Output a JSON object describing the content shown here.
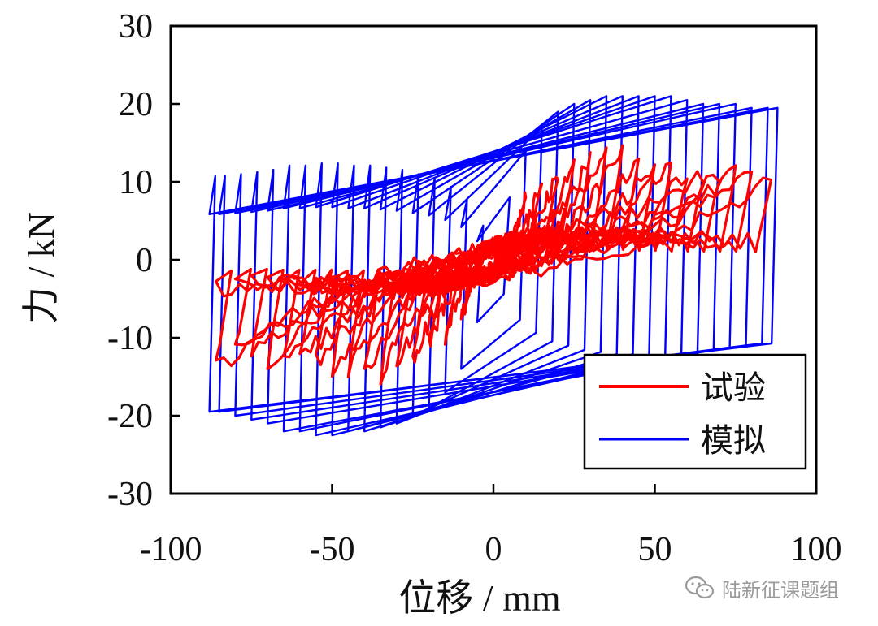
{
  "chart_data": {
    "type": "line",
    "title": "",
    "xlabel": "位移 / mm",
    "ylabel": "力 / kN",
    "xlim": [
      -100,
      100
    ],
    "ylim": [
      -30,
      30
    ],
    "x_ticks": [
      "-100",
      "-50",
      "0",
      "50",
      "100"
    ],
    "y_ticks": [
      "30",
      "20",
      "10",
      "0",
      "-10",
      "-20",
      "-30"
    ],
    "grid": false,
    "legend": {
      "placement": "bottom-right",
      "entries": [
        "试验",
        "模拟"
      ]
    },
    "series": [
      {
        "name": "试验",
        "color": "#ff0000",
        "loops": [
          {
            "amplitude": 10,
            "peak_pos": 8,
            "peak_neg": -8
          },
          {
            "amplitude": 15,
            "peak_pos": 10,
            "peak_neg": -10
          },
          {
            "amplitude": 20,
            "peak_pos": 11,
            "peak_neg": -11
          },
          {
            "amplitude": 25,
            "peak_pos": 12,
            "peak_neg": -13
          },
          {
            "amplitude": 30,
            "peak_pos": 13,
            "peak_neg": -14
          },
          {
            "amplitude": 35,
            "peak_pos": 14,
            "peak_neg": -15
          },
          {
            "amplitude": 40,
            "peak_pos": 14,
            "peak_neg": -15
          },
          {
            "amplitude": 45,
            "peak_pos": 13,
            "peak_neg": -14
          },
          {
            "amplitude": 50,
            "peak_pos": 12,
            "peak_neg": -14
          },
          {
            "amplitude": 55,
            "peak_pos": 12,
            "peak_neg": -13
          },
          {
            "amplitude": 60,
            "peak_pos": 11,
            "peak_neg": -13
          },
          {
            "amplitude": 65,
            "peak_pos": 11,
            "peak_neg": -13
          },
          {
            "amplitude": 70,
            "peak_pos": 11,
            "peak_neg": -13
          },
          {
            "amplitude": 75,
            "peak_pos": 11,
            "peak_neg": -12
          },
          {
            "amplitude": 80,
            "peak_pos": 11,
            "peak_neg": -12
          },
          {
            "amplitude": 86,
            "peak_pos": 10,
            "peak_neg": -14
          }
        ]
      },
      {
        "name": "模拟",
        "color": "#0000ff",
        "loops": [
          {
            "amplitude": 5,
            "peak_pos": 8,
            "peak_neg": -8
          },
          {
            "amplitude": 10,
            "peak_pos": 14,
            "peak_neg": -14
          },
          {
            "amplitude": 15,
            "peak_pos": 17,
            "peak_neg": -17
          },
          {
            "amplitude": 20,
            "peak_pos": 19,
            "peak_neg": -19
          },
          {
            "amplitude": 25,
            "peak_pos": 20,
            "peak_neg": -20
          },
          {
            "amplitude": 30,
            "peak_pos": 20.5,
            "peak_neg": -21
          },
          {
            "amplitude": 35,
            "peak_pos": 21,
            "peak_neg": -21.5
          },
          {
            "amplitude": 40,
            "peak_pos": 21,
            "peak_neg": -22
          },
          {
            "amplitude": 45,
            "peak_pos": 21,
            "peak_neg": -22
          },
          {
            "amplitude": 50,
            "peak_pos": 21,
            "peak_neg": -22.5
          },
          {
            "amplitude": 55,
            "peak_pos": 21,
            "peak_neg": -22.5
          },
          {
            "amplitude": 60,
            "peak_pos": 20.5,
            "peak_neg": -22
          },
          {
            "amplitude": 65,
            "peak_pos": 20,
            "peak_neg": -22
          },
          {
            "amplitude": 70,
            "peak_pos": 20,
            "peak_neg": -21
          },
          {
            "amplitude": 75,
            "peak_pos": 20,
            "peak_neg": -20.5
          },
          {
            "amplitude": 80,
            "peak_pos": 19.5,
            "peak_neg": -20
          },
          {
            "amplitude": 85,
            "peak_pos": 19.5,
            "peak_neg": -19.5
          },
          {
            "amplitude": 88,
            "peak_pos": 19.5,
            "peak_neg": -19.5
          }
        ]
      }
    ]
  },
  "watermark": {
    "text": "陆新征课题组",
    "icon": "wechat-icon",
    "color": "#9a9a9a"
  }
}
